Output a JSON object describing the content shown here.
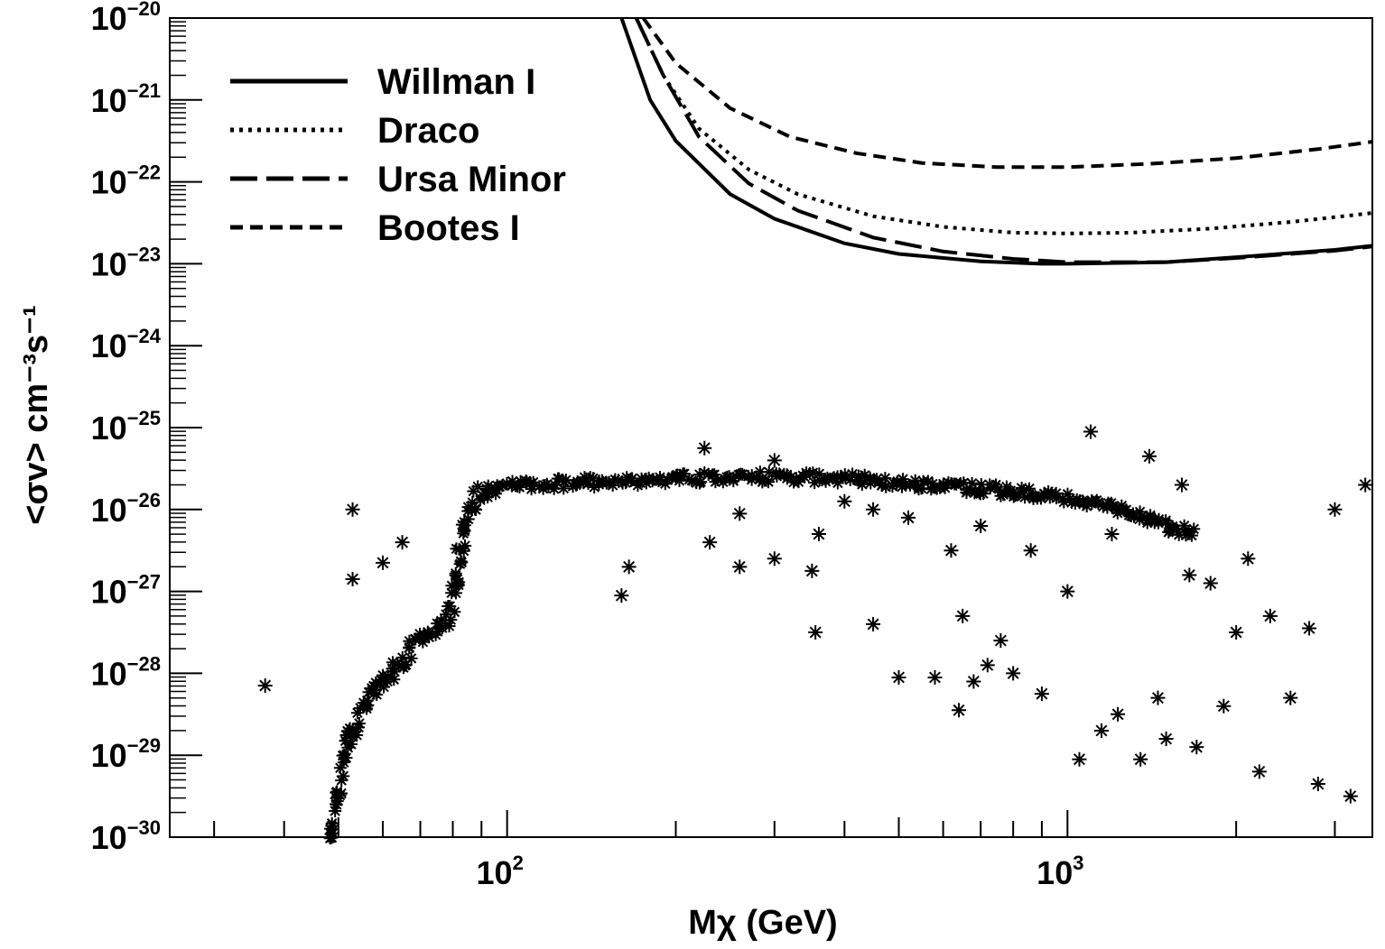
{
  "chart_data": {
    "type": "scatter",
    "title": "",
    "xlabel": "Mχ (GeV)",
    "ylabel": "<σv> cm⁻³s⁻¹",
    "x_scale": "log",
    "y_scale": "log",
    "xlim": [
      25,
      3500
    ],
    "ylim": [
      1e-30,
      1e-20
    ],
    "x_ticks": [
      {
        "base": "10",
        "exp": "2",
        "value": 100
      },
      {
        "base": "10",
        "exp": "3",
        "value": 1000
      }
    ],
    "y_ticks": [
      {
        "base": "10",
        "exp": "−20",
        "value": -20
      },
      {
        "base": "10",
        "exp": "−21",
        "value": -21
      },
      {
        "base": "10",
        "exp": "−22",
        "value": -22
      },
      {
        "base": "10",
        "exp": "−23",
        "value": -23
      },
      {
        "base": "10",
        "exp": "−24",
        "value": -24
      },
      {
        "base": "10",
        "exp": "−25",
        "value": -25
      },
      {
        "base": "10",
        "exp": "−26",
        "value": -26
      },
      {
        "base": "10",
        "exp": "−27",
        "value": -27
      },
      {
        "base": "10",
        "exp": "−28",
        "value": -28
      },
      {
        "base": "10",
        "exp": "−29",
        "value": -29
      },
      {
        "base": "10",
        "exp": "−30",
        "value": -30
      }
    ],
    "legend_position": "top-left",
    "series": [
      {
        "name": "Willman I",
        "style": "solid",
        "color": "#000000",
        "x": [
          160,
          180,
          200,
          250,
          300,
          400,
          500,
          700,
          900,
          1000,
          1500,
          2000,
          3000,
          3500
        ],
        "log10_y": [
          -20.0,
          -21.0,
          -21.5,
          -22.15,
          -22.45,
          -22.75,
          -22.88,
          -22.97,
          -23.0,
          -23.0,
          -22.98,
          -22.92,
          -22.83,
          -22.78
        ]
      },
      {
        "name": "Draco",
        "style": "dotted",
        "color": "#000000",
        "x": [
          170,
          190,
          220,
          270,
          330,
          450,
          600,
          800,
          1000,
          1300,
          1800,
          2500,
          3500
        ],
        "log10_y": [
          -20.0,
          -20.7,
          -21.35,
          -21.85,
          -22.15,
          -22.42,
          -22.55,
          -22.62,
          -22.63,
          -22.62,
          -22.57,
          -22.49,
          -22.38
        ]
      },
      {
        "name": "Ursa Minor",
        "style": "long-dashed",
        "color": "#000000",
        "x": [
          170,
          190,
          220,
          270,
          330,
          450,
          600,
          800,
          1000,
          1500,
          2000,
          3000,
          3500
        ],
        "log10_y": [
          -20.0,
          -20.7,
          -21.45,
          -22.02,
          -22.35,
          -22.68,
          -22.85,
          -22.94,
          -22.98,
          -22.98,
          -22.93,
          -22.84,
          -22.79
        ]
      },
      {
        "name": "Bootes I",
        "style": "dashed",
        "color": "#000000",
        "x": [
          175,
          200,
          250,
          320,
          420,
          550,
          750,
          1000,
          1400,
          2000,
          2800,
          3500
        ],
        "log10_y": [
          -20.0,
          -20.55,
          -21.1,
          -21.45,
          -21.65,
          -21.77,
          -21.82,
          -21.82,
          -21.78,
          -21.71,
          -21.6,
          -21.51
        ]
      }
    ],
    "scatter_band": {
      "marker": "asterisk",
      "x": [
        48,
        50,
        52,
        55,
        58,
        60,
        63,
        66,
        70,
        75,
        78,
        80,
        82,
        84,
        86,
        88,
        90,
        95,
        100,
        110,
        130,
        150,
        170,
        200,
        250,
        300,
        400,
        500,
        700,
        900,
        1100,
        1300,
        1500,
        1700
      ],
      "log10_y": [
        -30.0,
        -29.5,
        -28.8,
        -28.5,
        -28.2,
        -28.1,
        -28.0,
        -27.8,
        -27.6,
        -27.4,
        -27.3,
        -27.2,
        -26.6,
        -26.1,
        -25.9,
        -25.85,
        -25.8,
        -25.75,
        -25.72,
        -25.7,
        -25.68,
        -25.66,
        -25.65,
        -25.62,
        -25.6,
        -25.6,
        -25.62,
        -25.68,
        -25.75,
        -25.82,
        -25.92,
        -26.05,
        -26.2,
        -26.3
      ]
    },
    "scatter_outliers": {
      "marker": "asterisk",
      "x": [
        37,
        53,
        53,
        60,
        65,
        160,
        165,
        225,
        230,
        260,
        260,
        300,
        300,
        350,
        355,
        360,
        400,
        450,
        450,
        500,
        520,
        580,
        620,
        640,
        650,
        680,
        700,
        720,
        760,
        800,
        860,
        900,
        1000,
        1050,
        1100,
        1150,
        1200,
        1230,
        1350,
        1400,
        1450,
        1500,
        1600,
        1650,
        1700,
        1800,
        1900,
        2000,
        2100,
        2200,
        2300,
        2500,
        2700,
        2800,
        3000,
        3200,
        3400
      ],
      "log10_y": [
        -28.15,
        -26.0,
        -26.85,
        -26.65,
        -26.4,
        -27.05,
        -26.7,
        -25.25,
        -26.4,
        -26.05,
        -26.7,
        -25.4,
        -26.6,
        -26.75,
        -27.5,
        -26.3,
        -25.9,
        -26.0,
        -27.4,
        -28.05,
        -26.1,
        -28.05,
        -26.5,
        -28.45,
        -27.3,
        -28.1,
        -26.2,
        -27.9,
        -27.6,
        -28.0,
        -26.5,
        -28.25,
        -27.0,
        -29.05,
        -25.05,
        -28.7,
        -26.3,
        -28.5,
        -29.05,
        -25.35,
        -28.3,
        -28.8,
        -25.7,
        -26.8,
        -28.9,
        -26.9,
        -28.4,
        -27.5,
        -26.6,
        -29.2,
        -27.3,
        -28.3,
        -27.45,
        -29.35,
        -26.0,
        -29.5,
        -25.7
      ]
    }
  }
}
